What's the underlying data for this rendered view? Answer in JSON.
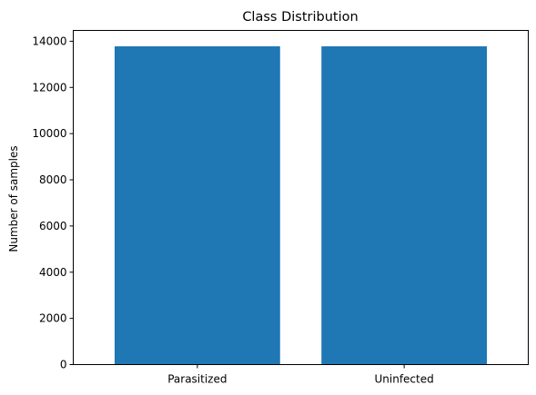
{
  "chart_data": {
    "type": "bar",
    "title": "Class Distribution",
    "xlabel": "",
    "ylabel": "Number of samples",
    "categories": [
      "Parasitized",
      "Uninfected"
    ],
    "values": [
      13779,
      13779
    ],
    "ylim": [
      0,
      14468
    ],
    "yticks": [
      0,
      2000,
      4000,
      6000,
      8000,
      10000,
      12000,
      14000
    ],
    "grid": false,
    "bar_color": "#1f77b4"
  }
}
